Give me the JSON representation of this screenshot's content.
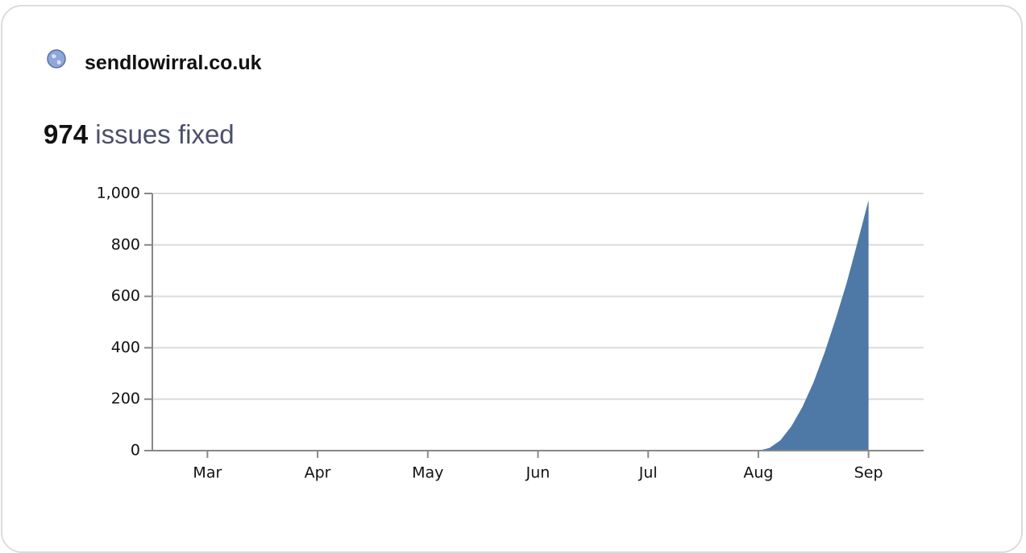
{
  "site": "sendlowirral.co.uk",
  "fixed_count": 974,
  "fixed_label": "issues fixed",
  "chart_data": {
    "type": "area",
    "x": [
      3,
      4,
      5,
      6,
      7,
      8,
      8.1,
      8.2,
      8.3,
      8.4,
      8.5,
      8.6,
      8.7,
      8.8,
      8.9,
      9
    ],
    "values": [
      0,
      0,
      0,
      0,
      0,
      0,
      10,
      40,
      95,
      170,
      265,
      380,
      510,
      650,
      810,
      974
    ],
    "color": "#4e79a7",
    "xlim": [
      2.5,
      9.5
    ],
    "xticks": [
      {
        "value": 3,
        "label": "Mar"
      },
      {
        "value": 4,
        "label": "Apr"
      },
      {
        "value": 5,
        "label": "May"
      },
      {
        "value": 6,
        "label": "Jun"
      },
      {
        "value": 7,
        "label": "Jul"
      },
      {
        "value": 8,
        "label": "Aug"
      },
      {
        "value": 9,
        "label": "Sep"
      }
    ],
    "ylim": [
      0,
      1000
    ],
    "yticks": [
      0,
      200,
      400,
      600,
      800,
      {
        "value": 1000,
        "label": "1,000"
      }
    ],
    "grid": true
  }
}
